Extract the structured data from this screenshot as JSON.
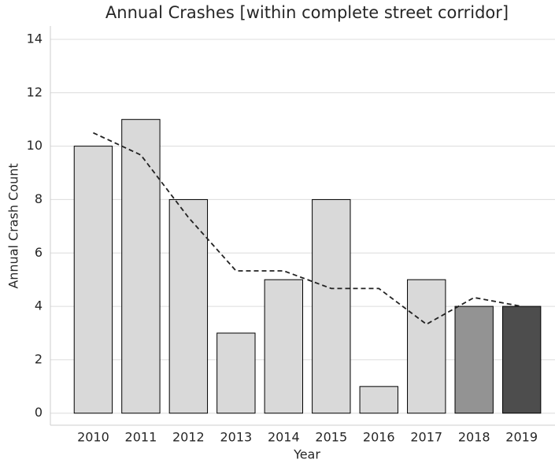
{
  "chart_data": {
    "type": "bar",
    "title": "Annual Crashes [within complete street corridor]",
    "x_label": "Year",
    "y_label": "Annual Crash Count",
    "categories": [
      "2010",
      "2011",
      "2012",
      "2013",
      "2014",
      "2015",
      "2016",
      "2017",
      "2018",
      "2019"
    ],
    "series": [
      {
        "type": "bar",
        "values": [
          10,
          11,
          8,
          3,
          5,
          8,
          1,
          5,
          4,
          4
        ],
        "colors": [
          "#d9d9d9",
          "#d9d9d9",
          "#d9d9d9",
          "#d9d9d9",
          "#d9d9d9",
          "#d9d9d9",
          "#d9d9d9",
          "#d9d9d9",
          "#939393",
          "#4d4d4d"
        ]
      },
      {
        "type": "line",
        "color": "#222222",
        "dashed": true,
        "values": [
          10.5,
          9.67,
          7.33,
          5.33,
          5.33,
          4.67,
          4.67,
          3.33,
          4.33,
          4.0
        ]
      }
    ],
    "ylim": [
      -0.45,
      14.5
    ],
    "yticks": [
      0,
      2,
      4,
      6,
      8,
      10,
      12,
      14
    ],
    "grid": true
  }
}
